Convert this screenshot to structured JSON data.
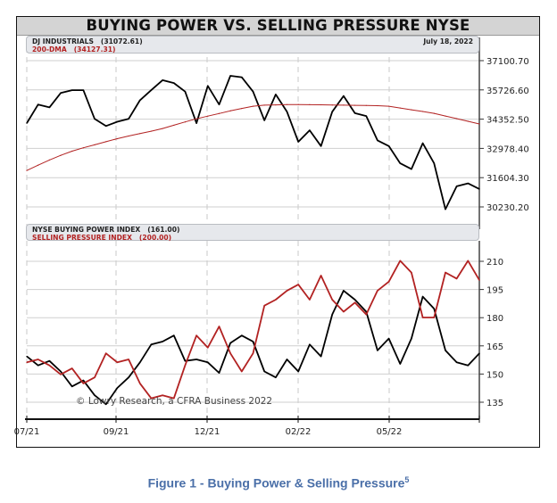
{
  "chart_data": [
    {
      "type": "line",
      "title": "BUYING POWER VS. SELLING PRESSURE NYSE",
      "date_label": "July 18, 2022",
      "x_ticks": [
        "07/21",
        "09/21",
        "12/21",
        "02/22",
        "05/22"
      ],
      "y_ticks": [
        "37100.70",
        "35726.60",
        "34352.50",
        "32978.40",
        "31604.30",
        "30230.20"
      ],
      "ylim": [
        30230.2,
        37100.7
      ],
      "grid": true,
      "legend_placement": "top",
      "series": [
        {
          "name": "DJ INDUSTRIALS",
          "legend_value": "(31072.61)",
          "color": "#000000",
          "values": [
            34164,
            35040,
            34905,
            35578,
            35713,
            35713,
            34366,
            34029,
            34231,
            34366,
            35241,
            35713,
            36185,
            36050,
            35645,
            34164,
            35915,
            35040,
            36387,
            36320,
            35645,
            34298,
            35511,
            34702,
            33288,
            33827,
            33086,
            34702,
            35443,
            34635,
            34500,
            33355,
            33086,
            32278,
            32008,
            33221,
            32278,
            30122,
            31200,
            31335,
            31073
          ]
        },
        {
          "name": "200-DMA",
          "legend_value": "(34127.31)",
          "color": "#b22222",
          "values": [
            31941,
            32190,
            32434,
            32651,
            32850,
            33006,
            33148,
            33293,
            33435,
            33559,
            33674,
            33789,
            33914,
            34067,
            34221,
            34370,
            34494,
            34618,
            34743,
            34855,
            34959,
            35009,
            35022,
            35035,
            35040,
            35033,
            35026,
            35018,
            35010,
            35003,
            34993,
            34983,
            34961,
            34877,
            34793,
            34712,
            34625,
            34500,
            34378,
            34252,
            34127
          ]
        }
      ]
    },
    {
      "type": "line",
      "x_ticks": [
        "07/21",
        "09/21",
        "12/21",
        "02/22",
        "05/22"
      ],
      "y_ticks": [
        "210",
        "195",
        "180",
        "165",
        "150",
        "135"
      ],
      "ylim": [
        135,
        210
      ],
      "grid": true,
      "legend_placement": "top",
      "annotation": "© Lowry Research, a CFRA Business 2022",
      "series": [
        {
          "name": "NYSE BUYING POWER INDEX",
          "legend_value": "(161.00)",
          "color": "#000000",
          "values": [
            159.4,
            154.6,
            157,
            151.4,
            143.4,
            146.6,
            138.7,
            133.9,
            142.6,
            148.2,
            156.2,
            165.7,
            167.3,
            170.5,
            157,
            157.8,
            156.2,
            150.6,
            166.5,
            170.5,
            167.3,
            151.4,
            148.2,
            157.8,
            151.4,
            165.7,
            159.4,
            181.7,
            194.4,
            189.6,
            183.2,
            162.6,
            168.9,
            155.4,
            168.9,
            191.2,
            184.8,
            162.6,
            156.2,
            154.6,
            161
          ]
        },
        {
          "name": "SELLING PRESSURE INDEX",
          "legend_value": "(200.00)",
          "color": "#b22222",
          "values": [
            156.2,
            157.8,
            154.6,
            149.8,
            153,
            145,
            148.2,
            161,
            156.2,
            157.8,
            145,
            137.1,
            138.7,
            137.1,
            154.6,
            170.5,
            164.1,
            175.3,
            161,
            151.4,
            161,
            186.4,
            189.6,
            194.4,
            197.6,
            189.6,
            202.4,
            189.6,
            183.2,
            188,
            181.7,
            194.4,
            199.2,
            210.3,
            204,
            180.1,
            180.1,
            204,
            200.8,
            210.3,
            200
          ]
        }
      ]
    }
  ],
  "caption": {
    "text": "Figure 1 - Buying Power & Selling Pressure",
    "footnote": "5"
  }
}
